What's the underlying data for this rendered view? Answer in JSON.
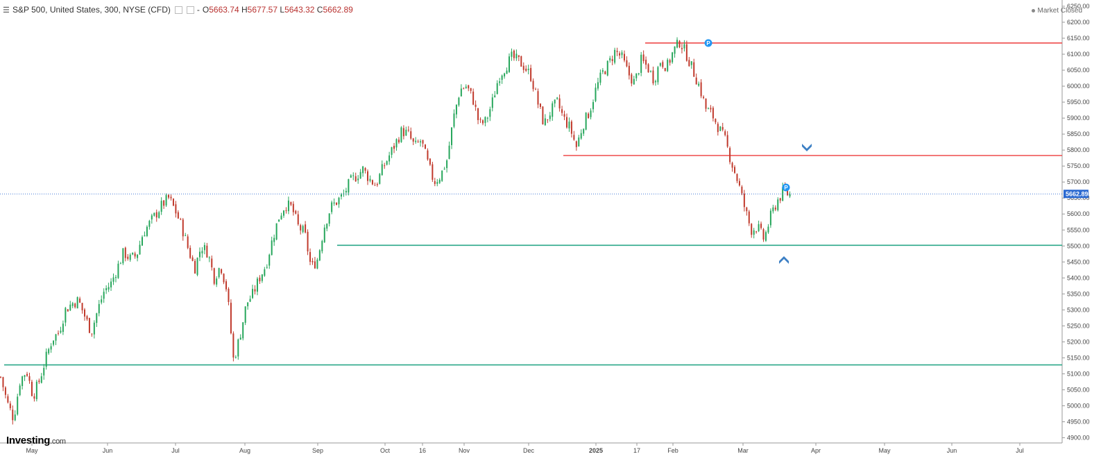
{
  "header": {
    "symbol": "S&P 500, United States, 300, NYSE (CFD)",
    "separator": "-",
    "open_label": "O",
    "open": "5663.74",
    "high_label": "H",
    "high": "5677.57",
    "low_label": "L",
    "low": "5643.32",
    "close_label": "C",
    "close": "5662.89"
  },
  "status": {
    "text": "Market Closed"
  },
  "logo": {
    "main": "Investing",
    "suffix": ".com"
  },
  "colors": {
    "up": "#26a65b",
    "down": "#c0392b",
    "resistance": "#ef4a4a",
    "support": "#2aa789",
    "price_badge": "#2b6ad1",
    "arrow": "#3c7fc4",
    "marker": "#2196f3"
  },
  "chart_data": {
    "type": "candlestick",
    "ylim": [
      4880,
      6280
    ],
    "yticks": [
      4900,
      4950,
      5000,
      5050,
      5100,
      5150,
      5200,
      5250,
      5300,
      5350,
      5400,
      5450,
      5500,
      5550,
      5600,
      5650,
      5700,
      5750,
      5800,
      5850,
      5900,
      5950,
      6000,
      6050,
      6100,
      6150,
      6200,
      6250
    ],
    "xlabels": [
      "May",
      "Jun",
      "Jul",
      "Aug",
      "Sep",
      "Oct",
      "16",
      "Nov",
      "Dec",
      "2025",
      "17",
      "Feb",
      "Mar",
      "Apr",
      "May",
      "Jun",
      "Jul"
    ],
    "current_price": "5662.89",
    "path": [
      [
        "Apr 22",
        5090
      ],
      [
        "Apr 25",
        5010
      ],
      [
        "Apr 29",
        4960
      ],
      [
        "May 2",
        5080
      ],
      [
        "May 6",
        5110
      ],
      [
        "May 9",
        5030
      ],
      [
        "May 13",
        5080
      ],
      [
        "May 17",
        5150
      ],
      [
        "May 22",
        5210
      ],
      [
        "May 27",
        5230
      ],
      [
        "Jun 1",
        5300
      ],
      [
        "Jun 6",
        5320
      ],
      [
        "Jun 10",
        5330
      ],
      [
        "Jun 14",
        5280
      ],
      [
        "Jun 17",
        5230
      ],
      [
        "Jun 20",
        5300
      ],
      [
        "Jun 25",
        5360
      ],
      [
        "Jun 28",
        5380
      ],
      [
        "Jul 2",
        5430
      ],
      [
        "Jul 5",
        5480
      ],
      [
        "Jul 10",
        5460
      ],
      [
        "Jul 14",
        5470
      ],
      [
        "Jul 18",
        5540
      ],
      [
        "Jul 22",
        5570
      ],
      [
        "Jul 26",
        5600
      ],
      [
        "Jul 30",
        5630
      ],
      [
        "Aug 2",
        5650
      ],
      [
        "Aug 4",
        5610
      ],
      [
        "Aug 7",
        5560
      ],
      [
        "Aug 9",
        5490
      ],
      [
        "Aug 12",
        5430
      ],
      [
        "Aug 15",
        5500
      ],
      [
        "Aug 18",
        5480
      ],
      [
        "Aug 20",
        5400
      ],
      [
        "Aug 22",
        5440
      ],
      [
        "Aug 24",
        5360
      ],
      [
        "Aug 26",
        5140
      ],
      [
        "Aug 28",
        5220
      ],
      [
        "Aug 31",
        5320
      ],
      [
        "Sep 3",
        5350
      ],
      [
        "Sep 5",
        5400
      ],
      [
        "Sep 8",
        5440
      ],
      [
        "Sep 11",
        5520
      ],
      [
        "Sep 15",
        5590
      ],
      [
        "Sep 20",
        5630
      ],
      [
        "Sep 24",
        5620
      ],
      [
        "Sep 27",
        5560
      ],
      [
        "Sep 30",
        5540
      ],
      [
        "Oct 3",
        5430
      ],
      [
        "Oct 5",
        5460
      ],
      [
        "Oct 8",
        5560
      ],
      [
        "Oct 11",
        5620
      ],
      [
        "Oct 14",
        5640
      ],
      [
        "Oct 18",
        5660
      ],
      [
        "Oct 22",
        5700
      ],
      [
        "Oct 26",
        5720
      ],
      [
        "Oct 30",
        5740
      ],
      [
        "Nov 3",
        5710
      ],
      [
        "Nov 7",
        5690
      ],
      [
        "Nov 10",
        5740
      ],
      [
        "Nov 14",
        5780
      ],
      [
        "Nov 18",
        5820
      ],
      [
        "Nov 22",
        5860
      ],
      [
        "Nov 26",
        5850
      ],
      [
        "Nov 29",
        5810
      ],
      [
        "Dec 2",
        5830
      ],
      [
        "Dec 4",
        5760
      ],
      [
        "Dec 5",
        5700
      ],
      [
        "Dec 7",
        5720
      ],
      [
        "Dec 9",
        5770
      ],
      [
        "Dec 12",
        5900
      ],
      [
        "Dec 15",
        5990
      ],
      [
        "Dec 18",
        6000
      ],
      [
        "Dec 20",
        5960
      ],
      [
        "Dec 23",
        5880
      ],
      [
        "Dec 26",
        5890
      ],
      [
        "Dec 30",
        5950
      ],
      [
        "Jan 3",
        6030
      ],
      [
        "Jan 8",
        6060
      ],
      [
        "Jan 13",
        6090
      ],
      [
        "Jan 17",
        6080
      ],
      [
        "Jan 21",
        6060
      ],
      [
        "Jan 24",
        6030
      ],
      [
        "Jan 27",
        5950
      ],
      [
        "Jan 30",
        5880
      ],
      [
        "Feb 3",
        5920
      ],
      [
        "Feb 6",
        5950
      ],
      [
        "Feb 9",
        5900
      ],
      [
        "Feb 12",
        5870
      ],
      [
        "Feb 14",
        5810
      ],
      [
        "Feb 16",
        5880
      ],
      [
        "Feb 18",
        5920
      ],
      [
        "Feb 20",
        5990
      ],
      [
        "Feb 22",
        6040
      ],
      [
        "Feb 24",
        6070
      ],
      [
        "Feb 26",
        6110
      ],
      [
        "Feb 28",
        6090
      ],
      [
        "Mar 2",
        6040
      ],
      [
        "Mar 4",
        6010
      ],
      [
        "Mar 6",
        6080
      ],
      [
        "Mar 9",
        6060
      ],
      [
        "Mar 12",
        6020
      ],
      [
        "Mar 15",
        6080
      ],
      [
        "Mar 18",
        6060
      ],
      [
        "Mar 21",
        6110
      ],
      [
        "Mar 23",
        6140
      ],
      [
        "Mar 25",
        6100
      ],
      [
        "Mar 27",
        6050
      ],
      [
        "Mar 29",
        6000
      ],
      [
        "Mar 31",
        5930
      ],
      [
        "Apr 2",
        5910
      ],
      [
        "Apr 4",
        5870
      ],
      [
        "Apr 6",
        5830
      ],
      [
        "Apr 8",
        5760
      ],
      [
        "Apr 10",
        5700
      ],
      [
        "Apr 12",
        5620
      ],
      [
        "Apr 14",
        5550
      ],
      [
        "Apr 16",
        5560
      ],
      [
        "Apr 18",
        5520
      ],
      [
        "Apr 20",
        5590
      ],
      [
        "Apr 22",
        5640
      ],
      [
        "Apr 24",
        5670
      ],
      [
        "Apr 26",
        5660
      ]
    ],
    "horizontal_lines": [
      {
        "kind": "resistance",
        "price": 6135
      },
      {
        "kind": "resistance",
        "price": 5783
      },
      {
        "kind": "support",
        "price": 5502
      },
      {
        "kind": "support",
        "price": 5128
      }
    ],
    "markers": [
      {
        "kind": "pivot",
        "label": "P"
      },
      {
        "kind": "pivot",
        "label": "P"
      }
    ],
    "arrows": [
      {
        "direction": "down"
      },
      {
        "direction": "up"
      }
    ]
  }
}
